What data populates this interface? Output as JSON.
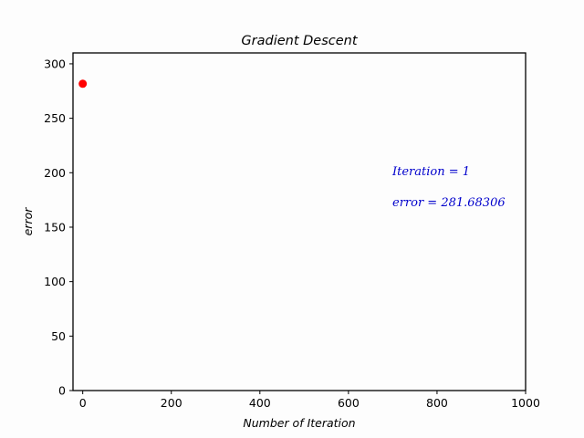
{
  "chart_data": {
    "type": "scatter",
    "title": "Gradient Descent",
    "xlabel": "Number of Iteration",
    "ylabel": "error",
    "xlim": [
      -22,
      1000
    ],
    "ylim": [
      0,
      310
    ],
    "xticks": [
      0,
      200,
      400,
      600,
      800,
      1000
    ],
    "yticks": [
      0,
      50,
      100,
      150,
      200,
      250,
      300
    ],
    "grid": false,
    "points": [
      {
        "x": 0,
        "y": 281.68306
      }
    ],
    "point_color": "#ff0000",
    "annotations": {
      "iteration_text": "Iteration = 1",
      "error_text": "error = 281.68306",
      "color": "#0000cc"
    }
  }
}
